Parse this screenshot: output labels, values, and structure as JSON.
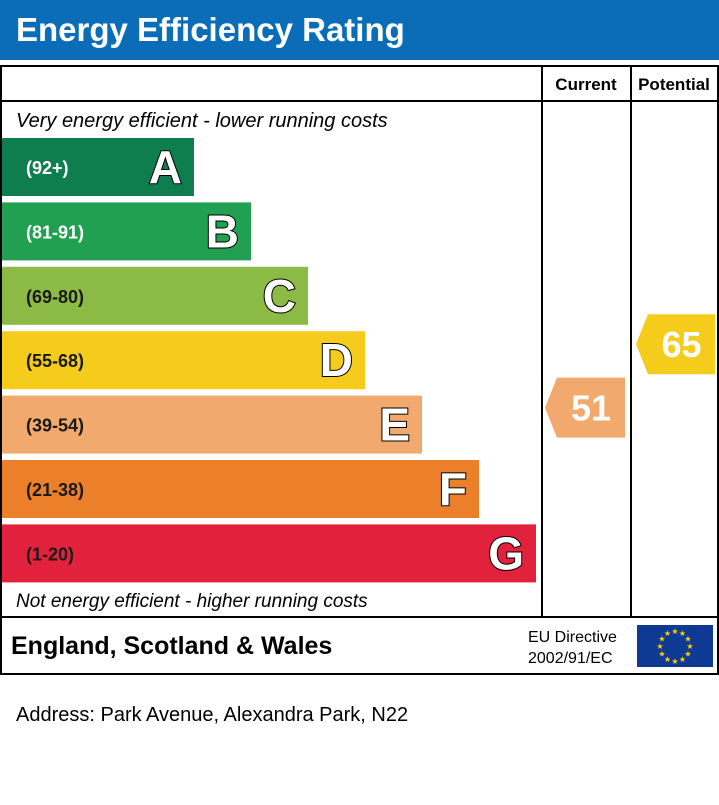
{
  "title": "Energy Efficiency Rating",
  "columns": {
    "current": "Current",
    "potential": "Potential"
  },
  "top_note": "Very energy efficient - lower running costs",
  "bottom_note": "Not energy efficient - higher running costs",
  "region": "England, Scotland & Wales",
  "directive_line1": "EU Directive",
  "directive_line2": "2002/91/EC",
  "address": "Address: Park Avenue, Alexandra Park, N22",
  "colors": {
    "header": "#0b6db7",
    "eu_flag": "#0e3a94",
    "eu_stars": "#ffd500"
  },
  "chart_data": {
    "type": "bar",
    "title": "Energy Efficiency Rating",
    "categories": [
      "A",
      "B",
      "C",
      "D",
      "E",
      "F",
      "G"
    ],
    "ranges": [
      "(92+)",
      "(81-91)",
      "(69-80)",
      "(55-68)",
      "(39-54)",
      "(21-38)",
      "(1-20)"
    ],
    "colors": [
      "#0f7e4f",
      "#22a052",
      "#8cbb45",
      "#f5cc1c",
      "#f2a96d",
      "#ec7f2a",
      "#e2213c"
    ],
    "current": {
      "value": 51,
      "band": "E",
      "color": "#f2a96d"
    },
    "potential": {
      "value": 65,
      "band": "D",
      "color": "#f5cc1c"
    }
  }
}
